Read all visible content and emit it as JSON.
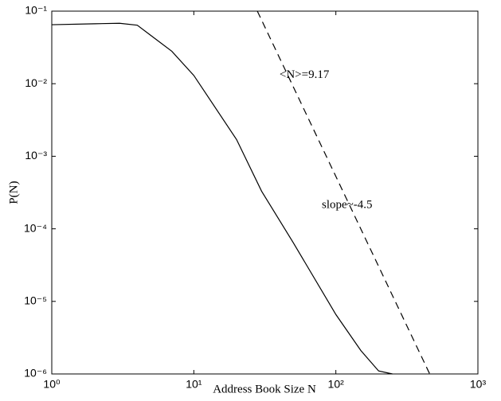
{
  "chart_data": {
    "type": "line",
    "x_label": "Address Book Size N",
    "y_label": "P(N)",
    "xscale": "log",
    "yscale": "log",
    "xlim": [
      1,
      1000
    ],
    "ylim": [
      1e-06,
      0.1
    ],
    "xticks": [
      {
        "value": 1,
        "label": "10⁰"
      },
      {
        "value": 10,
        "label": "10¹"
      },
      {
        "value": 100,
        "label": "10²"
      },
      {
        "value": 1000,
        "label": "10³"
      }
    ],
    "yticks": [
      {
        "value": 1e-06,
        "label": "10⁻⁶"
      },
      {
        "value": 1e-05,
        "label": "10⁻⁵"
      },
      {
        "value": 0.0001,
        "label": "10⁻⁴"
      },
      {
        "value": 0.001,
        "label": "10⁻³"
      },
      {
        "value": 0.01,
        "label": "10⁻²"
      },
      {
        "value": 0.1,
        "label": "10⁻¹"
      }
    ],
    "series": [
      {
        "color": "#000000",
        "linestyle": "solid",
        "x": [
          1,
          2,
          3,
          4,
          5,
          7,
          10,
          20,
          30,
          50,
          100,
          150,
          200,
          250
        ],
        "values": [
          0.065,
          0.067,
          0.068,
          0.064,
          0.046,
          0.028,
          0.013,
          0.0017,
          0.00033,
          6.5e-05,
          6.6e-06,
          2.1e-06,
          1.1e-06,
          1e-06
        ]
      },
      {
        "color": "#000000",
        "linestyle": "dashed",
        "x": [
          28,
          458
        ],
        "values": [
          0.1,
          1e-06
        ]
      }
    ],
    "annotations": [
      {
        "text": "<N>=9.17",
        "x": 60,
        "y": 0.013
      },
      {
        "text": "slope~-4.5",
        "x": 120,
        "y": 0.00021
      }
    ]
  }
}
